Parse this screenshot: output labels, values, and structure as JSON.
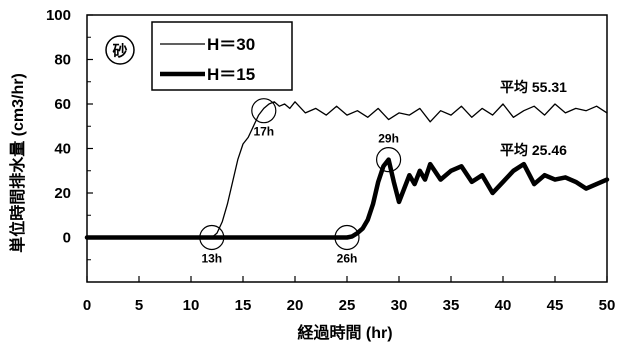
{
  "chart_data": {
    "type": "line",
    "xlabel": "経過時間 (hr)",
    "ylabel": "単位時間排水量 (cm3/hr)",
    "xlim": [
      0,
      50
    ],
    "ylim": [
      -20,
      100
    ],
    "x_ticks": [
      0,
      5,
      10,
      15,
      20,
      25,
      30,
      35,
      40,
      45,
      50
    ],
    "y_ticks": [
      0,
      20,
      40,
      60,
      80,
      100
    ],
    "grid": false,
    "legend_position": "top-left",
    "panel_label": "砂",
    "series": [
      {
        "name": "H=30",
        "style": "thin",
        "color": "#000000",
        "x": [
          0,
          12,
          12.5,
          13,
          13.5,
          14,
          14.5,
          15,
          15.5,
          16,
          16.5,
          17,
          17.5,
          18,
          18.5,
          19,
          19.5,
          20,
          21,
          22,
          23,
          24,
          25,
          26,
          27,
          28,
          29,
          30,
          31,
          32,
          33,
          34,
          35,
          36,
          37,
          38,
          39,
          40,
          41,
          42,
          43,
          44,
          45,
          46,
          47,
          48,
          49,
          50
        ],
        "y": [
          0,
          0,
          2,
          7,
          15,
          25,
          35,
          42,
          45,
          50,
          55,
          58,
          60,
          61,
          59,
          60,
          58,
          61,
          56,
          58,
          55,
          59,
          55,
          57,
          54,
          58,
          53,
          56,
          55,
          58,
          52,
          57,
          55,
          59,
          54,
          58,
          55,
          60,
          54,
          57,
          59,
          55,
          60,
          56,
          58,
          57,
          59,
          56
        ]
      },
      {
        "name": "H=15",
        "style": "thick",
        "color": "#000000",
        "x": [
          0,
          25,
          25.5,
          26,
          26.5,
          27,
          27.5,
          28,
          28.5,
          29,
          29.5,
          30,
          30.5,
          31,
          31.5,
          32,
          32.5,
          33,
          34,
          35,
          36,
          37,
          38,
          39,
          40,
          41,
          42,
          43,
          44,
          45,
          46,
          47,
          48,
          49,
          50
        ],
        "y": [
          0,
          0,
          0.5,
          2,
          4,
          8,
          15,
          25,
          32,
          35,
          25,
          16,
          22,
          28,
          24,
          30,
          26,
          33,
          26,
          30,
          32,
          25,
          28,
          20,
          25,
          30,
          33,
          24,
          28,
          26,
          27,
          25,
          22,
          24,
          26
        ]
      }
    ],
    "annotations": [
      {
        "label": "13h",
        "x": 12,
        "y": 0
      },
      {
        "label": "17h",
        "x": 17,
        "y": 57
      },
      {
        "label": "26h",
        "x": 25,
        "y": 0
      },
      {
        "label": "29h",
        "x": 29,
        "y": 35
      }
    ],
    "averages": [
      {
        "label": "平均",
        "value": "55.31"
      },
      {
        "label": "平均",
        "value": "25.46"
      }
    ]
  }
}
